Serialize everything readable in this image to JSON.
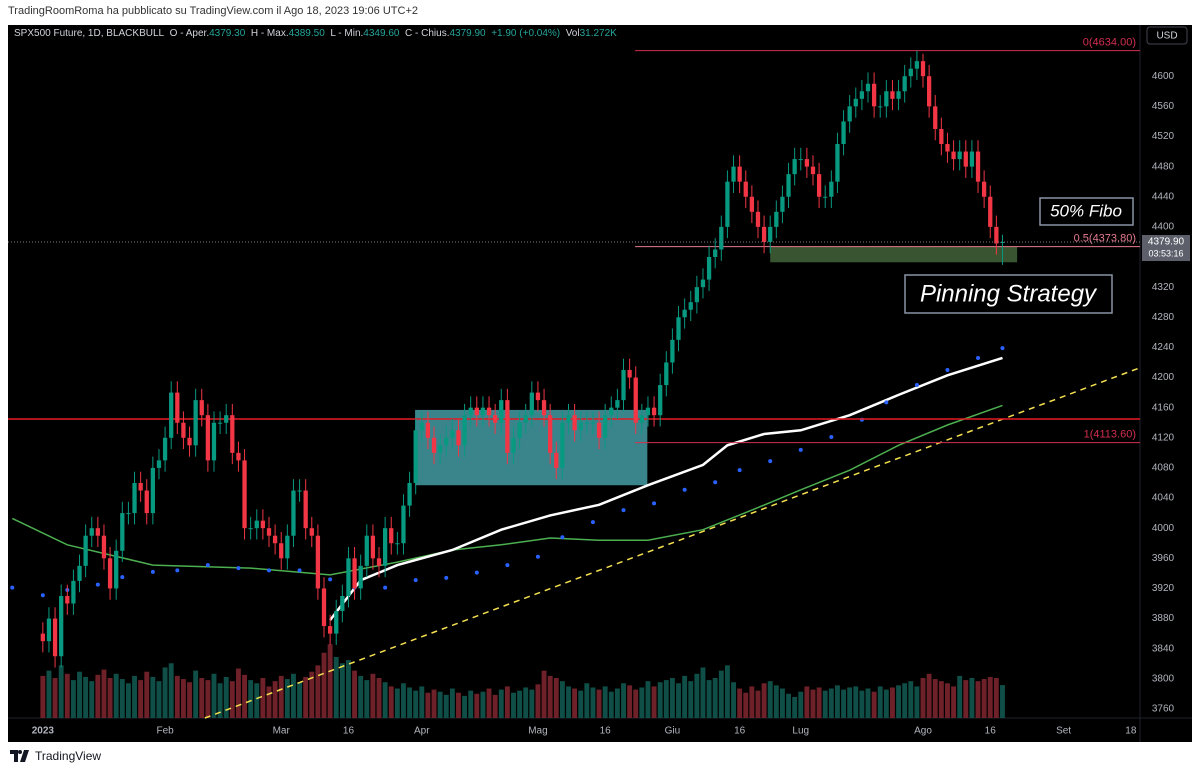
{
  "header": {
    "publisher": "TradingRoomRoma ha pubblicato su TradingView.com il Ago 18, 2023 19:06 UTC+2",
    "logo": "TradingView"
  },
  "chart_data": {
    "type": "candlestick",
    "symbol": "SPX500 Future, 1D, BLACKBULL",
    "legend": [
      {
        "label": "O - Aper.",
        "value": "4379.30"
      },
      {
        "label": "H - Max.",
        "value": "4389.50"
      },
      {
        "label": "L - Min.",
        "value": "4349.60"
      },
      {
        "label": "C - Chius.",
        "value": "4379.90"
      }
    ],
    "change": "+1.90 (+0.04%)",
    "volume_legend": {
      "label": "Vol",
      "value": "31.272K"
    },
    "currency": "USD",
    "up_color": "#089981",
    "down_color": "#f23645",
    "volume_up_color": "#0f4f47",
    "volume_down_color": "#6e2128",
    "open": [
      3860,
      3850,
      3880,
      3830,
      3910,
      3900,
      3930,
      3950,
      3990,
      4000,
      3990,
      3960,
      3920,
      3970,
      4020,
      4020,
      4060,
      4050,
      4020,
      4080,
      4090,
      4120,
      4180,
      4140,
      4120,
      4110,
      4170,
      4150,
      4090,
      4140,
      4140,
      4150,
      4100,
      4090,
      4000,
      4000,
      4010,
      4000,
      3990,
      3980,
      3960,
      3990,
      4050,
      4050,
      4000,
      3990,
      3920,
      3870,
      3860,
      3890,
      3910,
      3960,
      3920,
      3950,
      3990,
      3960,
      3950,
      4000,
      3980,
      3980,
      4030,
      4060,
      4130,
      4140,
      4120,
      4100,
      4110,
      4120,
      4130,
      4110,
      4150,
      4160,
      4150,
      4160,
      4150,
      4140,
      4170,
      4100,
      4120,
      4140,
      4150,
      4180,
      4170,
      4150,
      4100,
      4080,
      4140,
      4150,
      4130,
      4140,
      4140,
      4140,
      4120,
      4150,
      4160,
      4170,
      4210,
      4200,
      4140,
      4150,
      4160,
      4150,
      4190,
      4220,
      4250,
      4280,
      4290,
      4300,
      4320,
      4330,
      4360,
      4370,
      4400,
      4460,
      4480,
      4460,
      4440,
      4420,
      4400,
      4380,
      4400,
      4420,
      4440,
      4470,
      4490,
      4490,
      4480,
      4470,
      4440,
      4440,
      4460,
      4510,
      4540,
      4560,
      4570,
      4580,
      4590,
      4560,
      4560,
      4580,
      4570,
      4580,
      4600,
      4610,
      4620,
      4600,
      4560,
      4530,
      4510,
      4500,
      4490,
      4500,
      4480,
      4500,
      4460,
      4440,
      4400,
      4379.3
    ],
    "high": [
      3875,
      3895,
      3895,
      3925,
      3925,
      3945,
      3965,
      4005,
      4015,
      4015,
      4005,
      3975,
      3985,
      4035,
      4035,
      4075,
      4075,
      4065,
      4095,
      4105,
      4135,
      4195,
      4195,
      4155,
      4135,
      4185,
      4185,
      4165,
      4155,
      4155,
      4165,
      4165,
      4115,
      4105,
      4015,
      4025,
      4025,
      4015,
      4005,
      3995,
      4005,
      4065,
      4065,
      4065,
      4015,
      4005,
      3935,
      3885,
      3905,
      3925,
      3975,
      3975,
      3965,
      4005,
      4005,
      3975,
      4015,
      4015,
      3995,
      4045,
      4075,
      4145,
      4155,
      4155,
      4135,
      4125,
      4135,
      4145,
      4145,
      4165,
      4175,
      4175,
      4175,
      4175,
      4165,
      4185,
      4185,
      4135,
      4155,
      4165,
      4195,
      4195,
      4185,
      4165,
      4115,
      4155,
      4165,
      4165,
      4155,
      4155,
      4155,
      4155,
      4165,
      4175,
      4185,
      4225,
      4225,
      4215,
      4165,
      4175,
      4175,
      4205,
      4235,
      4265,
      4295,
      4305,
      4315,
      4335,
      4345,
      4375,
      4385,
      4415,
      4475,
      4495,
      4495,
      4475,
      4455,
      4435,
      4415,
      4415,
      4435,
      4455,
      4485,
      4505,
      4505,
      4505,
      4495,
      4485,
      4455,
      4475,
      4525,
      4555,
      4575,
      4585,
      4595,
      4605,
      4605,
      4575,
      4595,
      4595,
      4595,
      4615,
      4625,
      4634,
      4630,
      4615,
      4575,
      4545,
      4525,
      4515,
      4515,
      4515,
      4515,
      4515,
      4475,
      4455,
      4415,
      4389.5
    ],
    "low": [
      3835,
      3835,
      3815,
      3815,
      3885,
      3885,
      3915,
      3935,
      3975,
      3975,
      3945,
      3905,
      3905,
      3955,
      4005,
      4005,
      4035,
      4005,
      4005,
      4065,
      4075,
      4105,
      4125,
      4105,
      4095,
      4095,
      4135,
      4075,
      4075,
      4125,
      4125,
      4085,
      4075,
      3985,
      3985,
      3985,
      3985,
      3975,
      3965,
      3945,
      3945,
      3975,
      4035,
      3985,
      3975,
      3905,
      3855,
      3845,
      3845,
      3875,
      3895,
      3905,
      3905,
      3935,
      3945,
      3935,
      3935,
      3965,
      3965,
      3965,
      4015,
      4045,
      4115,
      4105,
      4085,
      4085,
      4095,
      4105,
      4095,
      4095,
      4135,
      4135,
      4135,
      4135,
      4125,
      4125,
      4085,
      4085,
      4105,
      4125,
      4135,
      4155,
      4135,
      4085,
      4065,
      4065,
      4125,
      4115,
      4115,
      4125,
      4125,
      4105,
      4105,
      4135,
      4145,
      4155,
      4185,
      4125,
      4125,
      4135,
      4135,
      4135,
      4175,
      4205,
      4235,
      4265,
      4275,
      4285,
      4305,
      4315,
      4345,
      4355,
      4385,
      4445,
      4445,
      4425,
      4405,
      4385,
      4365,
      4365,
      4385,
      4405,
      4425,
      4455,
      4475,
      4465,
      4455,
      4425,
      4425,
      4425,
      4445,
      4495,
      4525,
      4545,
      4555,
      4565,
      4545,
      4545,
      4545,
      4555,
      4555,
      4565,
      4585,
      4595,
      4585,
      4545,
      4515,
      4495,
      4485,
      4475,
      4475,
      4465,
      4465,
      4445,
      4425,
      4385,
      4363,
      4349.6
    ],
    "close": [
      3850,
      3880,
      3830,
      3910,
      3900,
      3930,
      3950,
      3990,
      4000,
      3990,
      3960,
      3920,
      3970,
      4020,
      4020,
      4060,
      4050,
      4020,
      4080,
      4090,
      4120,
      4180,
      4140,
      4120,
      4110,
      4170,
      4150,
      4090,
      4140,
      4140,
      4150,
      4100,
      4090,
      4000,
      4000,
      4010,
      4000,
      3990,
      3980,
      3960,
      3990,
      4050,
      4050,
      4000,
      3990,
      3920,
      3870,
      3860,
      3890,
      3910,
      3960,
      3920,
      3950,
      3990,
      3960,
      3950,
      4000,
      3980,
      3980,
      4030,
      4060,
      4130,
      4140,
      4120,
      4100,
      4110,
      4120,
      4130,
      4110,
      4150,
      4160,
      4150,
      4160,
      4150,
      4140,
      4170,
      4100,
      4120,
      4140,
      4150,
      4180,
      4170,
      4150,
      4100,
      4080,
      4140,
      4150,
      4130,
      4140,
      4140,
      4140,
      4120,
      4150,
      4160,
      4170,
      4210,
      4200,
      4140,
      4150,
      4160,
      4150,
      4190,
      4220,
      4250,
      4280,
      4290,
      4300,
      4320,
      4330,
      4360,
      4370,
      4400,
      4460,
      4480,
      4460,
      4440,
      4420,
      4400,
      4380,
      4400,
      4420,
      4440,
      4470,
      4490,
      4490,
      4480,
      4470,
      4440,
      4440,
      4460,
      4510,
      4540,
      4560,
      4570,
      4580,
      4590,
      4560,
      4560,
      4580,
      4570,
      4580,
      4600,
      4610,
      4620,
      4600,
      4560,
      4530,
      4510,
      4500,
      4490,
      4500,
      4480,
      4500,
      4460,
      4440,
      4400,
      4378,
      4379.9
    ],
    "volume": [
      40,
      45,
      38,
      50,
      42,
      36,
      44,
      39,
      35,
      41,
      46,
      38,
      42,
      37,
      33,
      40,
      36,
      44,
      39,
      35,
      48,
      52,
      40,
      37,
      34,
      45,
      38,
      36,
      42,
      33,
      39,
      35,
      47,
      41,
      36,
      33,
      38,
      30,
      35,
      40,
      37,
      42,
      34,
      39,
      44,
      50,
      62,
      70,
      58,
      52,
      55,
      45,
      40,
      36,
      42,
      38,
      34,
      30,
      28,
      33,
      29,
      26,
      30,
      24,
      27,
      25,
      22,
      28,
      24,
      21,
      26,
      23,
      25,
      28,
      22,
      27,
      30,
      24,
      26,
      29,
      27,
      32,
      45,
      40,
      38,
      35,
      30,
      28,
      26,
      33,
      29,
      27,
      30,
      25,
      28,
      33,
      31,
      27,
      29,
      35,
      30,
      34,
      36,
      38,
      33,
      40,
      35,
      42,
      48,
      36,
      38,
      45,
      50,
      34,
      28,
      24,
      30,
      26,
      33,
      35,
      31,
      28,
      23,
      20,
      25,
      30,
      27,
      29,
      26,
      28,
      31,
      27,
      29,
      30,
      26,
      28,
      25,
      30,
      27,
      29,
      31,
      33,
      35,
      30,
      38,
      42,
      37,
      35,
      33,
      30,
      40,
      36,
      38,
      35,
      37,
      39,
      38,
      31.272
    ],
    "volume_ylim": [
      0,
      95
    ],
    "xlim": [
      -5.7,
      179.5
    ],
    "xticks": [
      {
        "value": 0,
        "label": "2023"
      },
      {
        "value": 20,
        "label": "Feb"
      },
      {
        "value": 39,
        "label": "Mar"
      },
      {
        "value": 50,
        "label": "16"
      },
      {
        "value": 62,
        "label": "Apr"
      },
      {
        "value": 81,
        "label": "Mag"
      },
      {
        "value": 92,
        "label": "16"
      },
      {
        "value": 103,
        "label": "Giu"
      },
      {
        "value": 114,
        "label": "16"
      },
      {
        "value": 124,
        "label": "Lug"
      },
      {
        "value": 144,
        "label": "Ago"
      },
      {
        "value": 155,
        "label": "16"
      },
      {
        "value": 167,
        "label": "Set"
      },
      {
        "value": 178,
        "label": "18"
      }
    ],
    "ylim": [
      3748,
      4668
    ],
    "yticks": [
      3760,
      3800,
      3840,
      3880,
      3920,
      3960,
      4000,
      4040,
      4080,
      4120,
      4160,
      4200,
      4240,
      4280,
      4320,
      4360,
      4400,
      4440,
      4480,
      4520,
      4560,
      4600
    ],
    "last_price": {
      "value": 4379.9,
      "label": "4379.90",
      "countdown": "03:53:16"
    },
    "overlays": [
      {
        "kind": "line",
        "color": "#4caf50",
        "width": 1.5,
        "x": [
          -5,
          4,
          18,
          34,
          47,
          58,
          67,
          75,
          83,
          91,
          99,
          108,
          116,
          124,
          132,
          140,
          148,
          157
        ],
        "values": [
          4013,
          3978,
          3951,
          3947,
          3938,
          3955,
          3971,
          3978,
          3987,
          3984,
          3984,
          3998,
          4024,
          4051,
          4077,
          4110,
          4137,
          4163
        ]
      },
      {
        "kind": "line",
        "color": "#ffffff",
        "width": 2.5,
        "x": [
          47,
          52,
          58,
          67,
          75,
          83,
          91,
          99,
          108,
          112,
          118,
          124,
          132,
          140,
          148,
          157
        ],
        "values": [
          3878,
          3931,
          3951,
          3971,
          3998,
          4017,
          4031,
          4057,
          4084,
          4110,
          4125,
          4130,
          4150,
          4177,
          4203,
          4226
        ]
      },
      {
        "kind": "dots",
        "color": "#2962ff",
        "width": 2,
        "x": [
          -5,
          0,
          4,
          9,
          13,
          18,
          22,
          27,
          32,
          37,
          42,
          47,
          51,
          56,
          61,
          66,
          71,
          76,
          81,
          85,
          90,
          95,
          100,
          105,
          110,
          114,
          119,
          124,
          129,
          134,
          138,
          143,
          148,
          153,
          157
        ],
        "values": [
          3921,
          3911,
          3918,
          3925,
          3935,
          3942,
          3944,
          3951,
          3947,
          3944,
          3944,
          3932,
          3921,
          3921,
          3931,
          3934,
          3941,
          3951,
          3962,
          3988,
          4008,
          4024,
          4033,
          4051,
          4061,
          4077,
          4089,
          4104,
          4121,
          4144,
          4167,
          4190,
          4210,
          4226,
          4239
        ]
      }
    ],
    "trendline": {
      "x": [
        26.5,
        179.5
      ],
      "values": [
        3748,
        4213
      ],
      "color": "#f5e050"
    },
    "hlines": [
      {
        "value": 4145,
        "color": "#e31b23"
      }
    ],
    "fib": {
      "x_start": 96.9,
      "levels": [
        {
          "value": 4634,
          "label": "0(4634.00)",
          "color": "#d32f4f"
        },
        {
          "value": 4373.8,
          "label": "0.5(4373.80)",
          "color": "#e57b90"
        },
        {
          "value": 4113.6,
          "label": "1(4113.60)",
          "color": "#d32f4f"
        }
      ]
    },
    "boxes": [
      {
        "x": [
          60.9,
          98.9
        ],
        "values": [
          4057,
          4157
        ],
        "color": "rgba(72,165,175,0.8)"
      },
      {
        "x": [
          119,
          159.4
        ],
        "values": [
          4353,
          4374
        ],
        "color": "rgba(70,105,60,0.8)"
      }
    ],
    "annotations": [
      {
        "text": "50% Fibo"
      },
      {
        "text": "Pinning Strategy"
      }
    ]
  }
}
